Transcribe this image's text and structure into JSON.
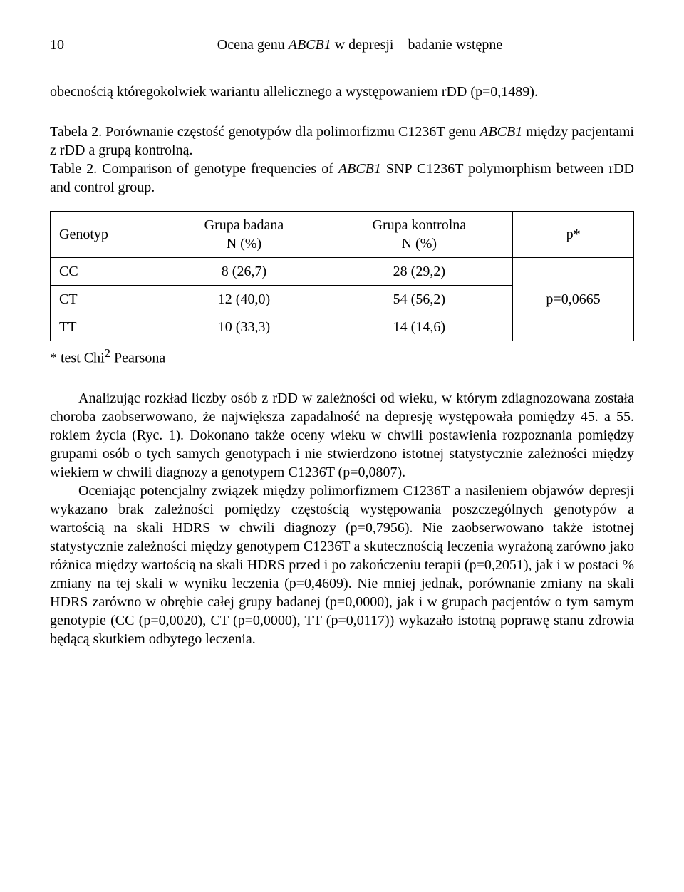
{
  "page": {
    "number": "10",
    "running_title_prefix": "Ocena genu ",
    "running_title_italic": "ABCB1",
    "running_title_suffix": " w depresji – badanie wstępne"
  },
  "intro": {
    "text": "obecnością któregokolwiek wariantu allelicznego a występowaniem rDD (p=0,1489)."
  },
  "caption": {
    "pl_prefix": "Tabela 2. Porównanie częstość genotypów dla polimorfizmu C1236T genu ",
    "pl_italic": "ABCB1",
    "pl_suffix": " między pacjentami z rDD a grupą kontrolną.",
    "en_prefix": "Table 2. Comparison of genotype frequencies of ",
    "en_italic": "ABCB1",
    "en_suffix": " SNP C1236T polymorphism between rDD and control group."
  },
  "table": {
    "headers": {
      "genotyp": "Genotyp",
      "badana_line1": "Grupa badana",
      "badana_line2": "N (%)",
      "kontrolna_line1": "Grupa kontrolna",
      "kontrolna_line2": "N (%)",
      "p": "p*"
    },
    "rows": [
      {
        "genotyp": "CC",
        "badana": "8 (26,7)",
        "kontrolna": "28 (29,2)"
      },
      {
        "genotyp": "CT",
        "badana": "12 (40,0)",
        "kontrolna": "54 (56,2)"
      },
      {
        "genotyp": "TT",
        "badana": "10 (33,3)",
        "kontrolna": "14 (14,6)"
      }
    ],
    "p_value": "p=0,0665",
    "footnote_prefix": "* test Chi",
    "footnote_sup": "2",
    "footnote_suffix": " Pearsona"
  },
  "paragraphs": {
    "p1": "Analizując rozkład liczby osób z rDD w zależności od wieku, w którym zdiagnozowana została choroba zaobserwowano, że największa zapadalność na depresję występowała pomiędzy 45. a 55. rokiem życia (Ryc. 1). Dokonano także oceny wieku w chwili postawienia rozpoznania pomiędzy grupami osób o tych samych genotypach i nie stwierdzono istotnej statystycznie zależności między wiekiem w chwili diagnozy a genotypem C1236T (p=0,0807).",
    "p2": "Oceniając potencjalny związek między polimorfizmem C1236T a nasileniem objawów depresji wykazano brak zależności pomiędzy częstością występowania poszczególnych genotypów a wartością na skali HDRS w chwili diagnozy (p=0,7956). Nie zaobserwowano także istotnej statystycznie zależności między genotypem C1236T a skutecznością leczenia wyrażoną zarówno jako różnica między wartością na skali HDRS przed i po zakończeniu terapii (p=0,2051), jak i w postaci % zmiany na tej skali w wyniku leczenia (p=0,4609). Nie mniej jednak, porównanie zmiany na skali HDRS zarówno w obrębie całej grupy badanej (p=0,0000), jak i w grupach pacjentów o tym samym genotypie (CC (p=0,0020), CT (p=0,0000), TT (p=0,0117)) wykazało istotną poprawę stanu zdrowia będącą skutkiem odbytego leczenia."
  }
}
